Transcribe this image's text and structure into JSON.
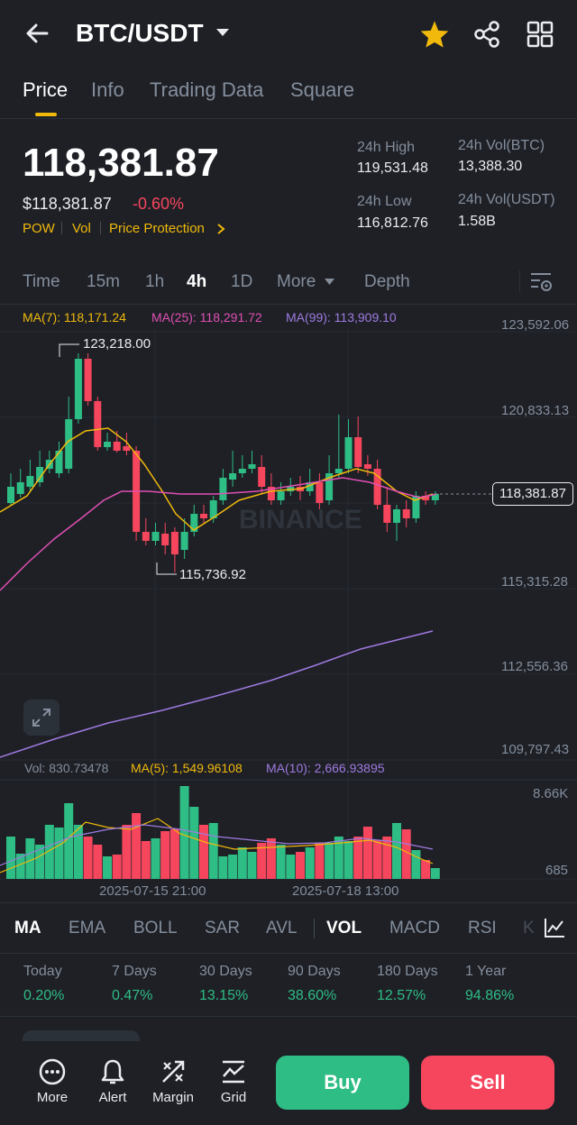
{
  "header": {
    "pair": "BTC/USDT",
    "tabs": [
      "Price",
      "Info",
      "Trading Data",
      "Square"
    ],
    "active_tab": "Price"
  },
  "price": {
    "last": "118,381.87",
    "usd": "$118,381.87",
    "change": "-0.60%",
    "tags": [
      "POW",
      "Vol",
      "Price Protection"
    ],
    "high_label": "24h High",
    "high": "119,531.48",
    "low_label": "24h Low",
    "low": "116,812.76",
    "vol_btc_label": "24h Vol(BTC)",
    "vol_btc": "13,388.30",
    "vol_usdt_label": "24h Vol(USDT)",
    "vol_usdt": "1.58B"
  },
  "intervals": {
    "time": "Time",
    "m15": "15m",
    "h1": "1h",
    "h4": "4h",
    "d1": "1D",
    "more": "More",
    "depth": "Depth"
  },
  "chart": {
    "ma7": "MA(7): 118,171.24",
    "ma25": "MA(25): 118,291.72",
    "ma99": "MA(99): 113,909.10",
    "y_ticks": [
      "123,592.06",
      "120,833.13",
      "115,315.28",
      "112,556.36",
      "109,797.43"
    ],
    "high_marker": "123,218.00",
    "low_marker": "115,736.92",
    "current": "118,381.87",
    "watermark": "BINANCE",
    "vol_label": "Vol: 830.73478",
    "vol_ma5": "MA(5): 1,549.96108",
    "vol_ma10": "MA(10): 2,666.93895",
    "vol_ticks": [
      "8.66K",
      "685"
    ],
    "x_ticks": [
      "2025-07-15 21:00",
      "2025-07-18 13:00"
    ]
  },
  "indicators": [
    "MA",
    "EMA",
    "BOLL",
    "SAR",
    "AVL",
    "VOL",
    "MACD",
    "RSI",
    "KD"
  ],
  "performance": [
    {
      "label": "Today",
      "value": "0.20%"
    },
    {
      "label": "7 Days",
      "value": "0.47%"
    },
    {
      "label": "30 Days",
      "value": "13.15%"
    },
    {
      "label": "90 Days",
      "value": "38.60%"
    },
    {
      "label": "180 Days",
      "value": "12.57%"
    },
    {
      "label": "1 Year",
      "value": "94.86%"
    }
  ],
  "bottom": {
    "more": "More",
    "alert": "Alert",
    "margin": "Margin",
    "grid": "Grid",
    "buy": "Buy",
    "sell": "Sell"
  },
  "colors": {
    "up": "#2ebd85",
    "down": "#f6465d",
    "accent": "#f0b90b",
    "background": "#1e2026"
  }
}
